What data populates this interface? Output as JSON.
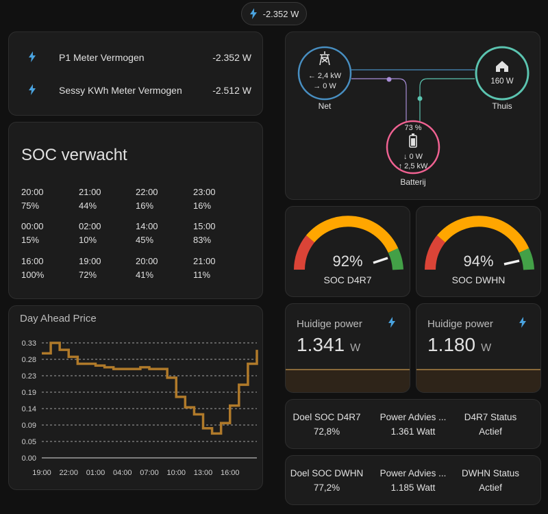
{
  "header_chip": {
    "value": "-2.352 W",
    "icon": "lightning-bolt-icon"
  },
  "entities": [
    {
      "icon": "lightning-bolt-icon",
      "name": "P1 Meter Vermogen",
      "value": "-2.352 W"
    },
    {
      "icon": "lightning-bolt-icon",
      "name": "Sessy KWh Meter Vermogen",
      "value": "-2.512 W"
    }
  ],
  "soc_forecast": {
    "title": "SOC verwacht",
    "rows": [
      [
        {
          "time": "20:00",
          "value": "75%"
        },
        {
          "time": "21:00",
          "value": "44%"
        },
        {
          "time": "22:00",
          "value": "16%"
        },
        {
          "time": "23:00",
          "value": "16%"
        }
      ],
      [
        {
          "time": "00:00",
          "value": "15%"
        },
        {
          "time": "02:00",
          "value": "10%"
        },
        {
          "time": "14:00",
          "value": "45%"
        },
        {
          "time": "15:00",
          "value": "83%"
        }
      ],
      [
        {
          "time": "16:00",
          "value": "100%"
        },
        {
          "time": "19:00",
          "value": "72%"
        },
        {
          "time": "20:00",
          "value": "41%"
        },
        {
          "time": "21:00",
          "value": "11%"
        }
      ]
    ]
  },
  "energy_flow": {
    "grid": {
      "label": "Net",
      "import": "← 2,4 kW",
      "export": "→ 0 W",
      "color": "#488fc2"
    },
    "home": {
      "label": "Thuis",
      "value": "160 W",
      "color": "#5bc4b0"
    },
    "battery": {
      "label": "Batterij",
      "soc": "73 %",
      "in": "↓ 0 W",
      "out": "↑ 2,5 kW",
      "color": "#f06292"
    },
    "battery_line_color": "#a98ed8",
    "grid_home_line_color": "#488fc2"
  },
  "chart_data": {
    "type": "line",
    "title": "Day Ahead Price",
    "step": true,
    "xlabel": "",
    "ylabel": "",
    "ylim": [
      0,
      0.33
    ],
    "yticks": [
      "0.00",
      "0.05",
      "0.09",
      "0.14",
      "0.19",
      "0.23",
      "0.28",
      "0.33"
    ],
    "xticks": [
      "19:00",
      "22:00",
      "01:00",
      "04:00",
      "07:00",
      "10:00",
      "13:00",
      "16:00"
    ],
    "color": "#b07a2a",
    "series": [
      {
        "name": "Day Ahead Price",
        "x": [
          19,
          20,
          21,
          22,
          23,
          24,
          25,
          26,
          27,
          28,
          29,
          30,
          31,
          32,
          33,
          34,
          35,
          36,
          37,
          38,
          39,
          40,
          41,
          42
        ],
        "values": [
          0.3,
          0.33,
          0.31,
          0.29,
          0.27,
          0.27,
          0.265,
          0.26,
          0.255,
          0.255,
          0.255,
          0.26,
          0.255,
          0.255,
          0.23,
          0.175,
          0.145,
          0.125,
          0.085,
          0.07,
          0.1,
          0.15,
          0.21,
          0.27
        ]
      }
    ],
    "last_value": 0.31
  },
  "gauges": [
    {
      "name": "SOC D4R7",
      "value": "92%",
      "percent": 92
    },
    {
      "name": "SOC DWHN",
      "value": "94%",
      "percent": 94
    }
  ],
  "power_cards": [
    {
      "title": "Huidige power",
      "value": "1.341",
      "unit": "W",
      "icon": "lightning-bolt-icon"
    },
    {
      "title": "Huidige power",
      "value": "1.180",
      "unit": "W",
      "icon": "lightning-bolt-icon"
    }
  ],
  "glance_d4r7": [
    {
      "name": "Doel SOC D4R7",
      "value": "72,8%"
    },
    {
      "name": "Power Advies ...",
      "value": "1.361 Watt"
    },
    {
      "name": "D4R7 Status",
      "value": "Actief"
    }
  ],
  "glance_dwhn": [
    {
      "name": "Doel SOC DWHN",
      "value": "77,2%"
    },
    {
      "name": "Power Advies ...",
      "value": "1.185 Watt"
    },
    {
      "name": "DWHN Status",
      "value": "Actief"
    }
  ]
}
